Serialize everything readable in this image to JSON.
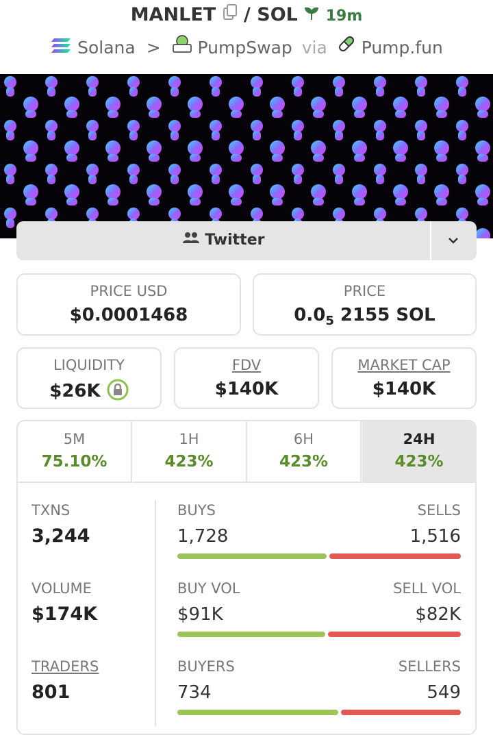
{
  "header": {
    "token": "MANLET",
    "separator": "/",
    "quote": "SOL",
    "age": "19m",
    "chain": "Solana",
    "dex": "PumpSwap",
    "via": "via",
    "launchpad": "Pump.fun"
  },
  "social": "Twitter",
  "price_usd": {
    "label": "PRICE USD",
    "value": "$0.0001468"
  },
  "price": {
    "label": "PRICE",
    "prefix": "0.0",
    "zeros": "5",
    "digits": "2155 SOL"
  },
  "stats": [
    {
      "label": "LIQUIDITY",
      "value": "$26K"
    },
    {
      "label": "FDV",
      "value": "$140K"
    },
    {
      "label": "MARKET CAP",
      "value": "$140K"
    }
  ],
  "tabs": [
    {
      "label": "5M",
      "change": "75.10%"
    },
    {
      "label": "1H",
      "change": "423%"
    },
    {
      "label": "6H",
      "change": "423%"
    },
    {
      "label": "24H",
      "change": "423%"
    }
  ],
  "metrics": [
    {
      "label": "TXNS",
      "value": "3,244"
    },
    {
      "label": "VOLUME",
      "value": "$174K"
    },
    {
      "label": "TRADERS",
      "value": "801"
    }
  ],
  "splits": [
    {
      "left_label": "BUYS",
      "left": {
        "value": 1728,
        "label": "1,728"
      },
      "right_label": "SELLS",
      "right": {
        "value": 1516,
        "label": "1,516"
      }
    },
    {
      "left_label": "BUY VOL",
      "left": {
        "value": 91000,
        "label": "$91K"
      },
      "right_label": "SELL VOL",
      "right": {
        "value": 82000,
        "label": "$82K"
      }
    },
    {
      "left_label": "BUYERS",
      "left": 734,
      "right_label": "SELLERS",
      "right": 549
    }
  ]
}
